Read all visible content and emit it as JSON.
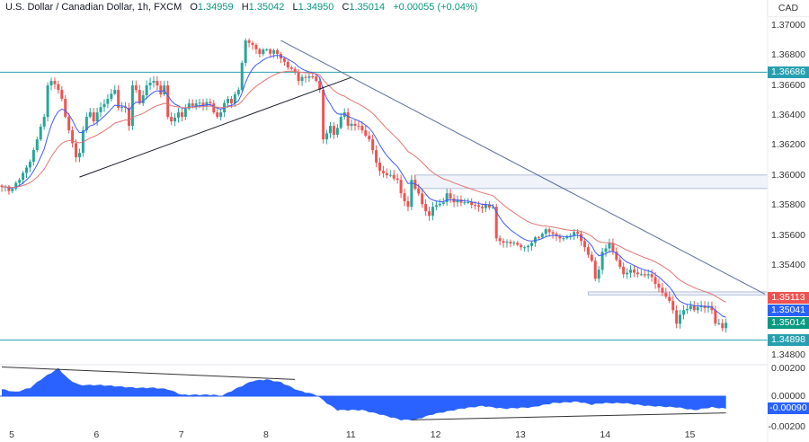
{
  "header": {
    "symbol": "U.S. Dollar / Canadian Dollar, 1h, FXCM",
    "open_label": "O",
    "open": "1.34959",
    "high_label": "H",
    "high": "1.35042",
    "low_label": "L",
    "low": "1.34950",
    "close_label": "C",
    "close": "1.35014",
    "change": "+0.00055 (+0.04%)"
  },
  "currency": "CAD",
  "colors": {
    "up": "#26a69a",
    "down": "#ef5350",
    "fast_ma": "#3d5afe",
    "slow_ma": "#e57373",
    "level": "#26a0b0",
    "trendline_down": "#5b6c9b",
    "oscillator": "#2962ff"
  },
  "price_axis": [
    "1.37000",
    "1.36800",
    "1.36600",
    "1.36400",
    "1.36200",
    "1.36000",
    "1.35800",
    "1.35600",
    "1.35400",
    "1.34800"
  ],
  "osc_axis": [
    "0.00200",
    "0.00000"
  ],
  "osc_axis_partial": "-0.00200",
  "price_tags": [
    {
      "value": "1.36686",
      "color": "#26a0b0"
    },
    {
      "value": "1.35113",
      "color": "#ef5350"
    },
    {
      "value": "1.35041",
      "color": "#2962ff"
    },
    {
      "value": "1.35014",
      "color": "#089981"
    },
    {
      "value": "1.34898",
      "color": "#26a0b0"
    }
  ],
  "osc_tag": {
    "value": "-0.00090",
    "color": "#2962ff"
  },
  "x_axis": [
    {
      "label": "5",
      "hour": 0
    },
    {
      "label": "6",
      "hour": 24
    },
    {
      "label": "7",
      "hour": 48
    },
    {
      "label": "8",
      "hour": 72
    },
    {
      "label": "11",
      "hour": 96
    },
    {
      "label": "12",
      "hour": 120
    },
    {
      "label": "13",
      "hour": 144
    },
    {
      "label": "14",
      "hour": 168
    },
    {
      "label": "15",
      "hour": 192
    }
  ],
  "chart_data": {
    "type": "candlestick",
    "interval": "1h",
    "price_range": [
      1.3475,
      1.3705
    ],
    "closes": [
      [
        0,
        1.3592
      ],
      [
        3,
        1.35908
      ],
      [
        5,
        1.35968
      ],
      [
        8,
        1.36088
      ],
      [
        10,
        1.36238
      ],
      [
        12,
        1.36388
      ],
      [
        13,
        1.36598
      ],
      [
        14,
        1.36628
      ],
      [
        16,
        1.36568
      ],
      [
        17,
        1.36508
      ],
      [
        18,
        1.36388
      ],
      [
        19,
        1.36298
      ],
      [
        21,
        1.36118
      ],
      [
        22,
        1.36148
      ],
      [
        23,
        1.36298
      ],
      [
        24,
        1.36388
      ],
      [
        25,
        1.36418
      ],
      [
        26,
        1.36358
      ],
      [
        27,
        1.36418
      ],
      [
        30,
        1.36508
      ],
      [
        32,
        1.36568
      ],
      [
        33,
        1.36448
      ],
      [
        35,
        1.36448
      ],
      [
        36,
        1.36328
      ],
      [
        37,
        1.36598
      ],
      [
        38,
        1.36568
      ],
      [
        39,
        1.36478
      ],
      [
        41,
        1.36598
      ],
      [
        43,
        1.36628
      ],
      [
        45,
        1.36538
      ],
      [
        46,
        1.36598
      ],
      [
        47,
        1.36388
      ],
      [
        48,
        1.36358
      ],
      [
        50,
        1.36418
      ],
      [
        51,
        1.36388
      ],
      [
        53,
        1.36478
      ],
      [
        55,
        1.36478
      ],
      [
        59,
        1.36478
      ],
      [
        60,
        1.36418
      ],
      [
        61,
        1.36388
      ],
      [
        64,
        1.36508
      ],
      [
        65,
        1.36478
      ],
      [
        67,
        1.36568
      ],
      [
        68,
        1.36748
      ],
      [
        69,
        1.36898
      ],
      [
        71,
        1.36868
      ],
      [
        73,
        1.36808
      ],
      [
        75,
        1.36838
      ],
      [
        78,
        1.36808
      ],
      [
        79,
        1.36778
      ],
      [
        81,
        1.36718
      ],
      [
        83,
        1.36688
      ],
      [
        84,
        1.36628
      ],
      [
        87,
        1.36658
      ],
      [
        89,
        1.36628
      ],
      [
        90,
        1.36568
      ],
      [
        91,
        1.36238
      ],
      [
        93,
        1.36328
      ],
      [
        94,
        1.36268
      ],
      [
        96,
        1.36388
      ],
      [
        97,
        1.36418
      ],
      [
        98,
        1.36328
      ],
      [
        101,
        1.36328
      ],
      [
        102,
        1.36298
      ],
      [
        104,
        1.36238
      ],
      [
        107,
        1.36028
      ],
      [
        109,
        1.35998
      ],
      [
        112,
        1.35968
      ],
      [
        113,
        1.35878
      ],
      [
        115,
        1.35788
      ],
      [
        116,
        1.35968
      ],
      [
        117,
        1.35908
      ],
      [
        120,
        1.35758
      ],
      [
        121,
        1.35728
      ],
      [
        122,
        1.35788
      ],
      [
        125,
        1.35818
      ],
      [
        126,
        1.35878
      ],
      [
        128,
        1.35818
      ],
      [
        131,
        1.35818
      ],
      [
        135,
        1.35788
      ],
      [
        139,
        1.35788
      ],
      [
        140,
        1.35578
      ],
      [
        142,
        1.35548
      ],
      [
        145,
        1.35548
      ],
      [
        148,
        1.35518
      ],
      [
        150,
        1.35548
      ],
      [
        153,
        1.35608
      ],
      [
        154,
        1.35638
      ],
      [
        156,
        1.35608
      ],
      [
        159,
        1.35578
      ],
      [
        162,
        1.3562
      ],
      [
        163,
        1.35608
      ],
      [
        165,
        1.35518
      ],
      [
        167,
        1.35428
      ],
      [
        168,
        1.35308
      ],
      [
        169,
        1.35368
      ],
      [
        170,
        1.35488
      ],
      [
        172,
        1.35548
      ],
      [
        173,
        1.35488
      ],
      [
        176,
        1.35338
      ],
      [
        178,
        1.35368
      ],
      [
        181,
        1.35338
      ],
      [
        183,
        1.35338
      ],
      [
        186,
        1.35248
      ],
      [
        188,
        1.35188
      ],
      [
        190,
        1.35098
      ],
      [
        191,
        1.35008
      ],
      [
        192,
        1.35068
      ],
      [
        193,
        1.35098
      ],
      [
        195,
        1.35128
      ],
      [
        196,
        1.35098
      ],
      [
        198,
        1.35128
      ],
      [
        201,
        1.35098
      ],
      [
        202,
        1.35008
      ],
      [
        204,
        1.34978
      ],
      [
        205,
        1.35014
      ]
    ],
    "horizontal_levels": [
      1.36686,
      1.34898
    ],
    "zones": [
      {
        "from_hour": 117,
        "top": 1.36,
        "bottom": 1.3591
      },
      {
        "from_hour": 166,
        "top": 1.3522,
        "bottom": 1.352
      }
    ],
    "trendlines": [
      {
        "from": [
          22,
          1.35986
        ],
        "to": [
          99,
          1.36652
        ],
        "color": "#131722"
      },
      {
        "from": [
          79,
          1.36898
        ],
        "to": [
          216,
          1.35206
        ],
        "color": "#5b6c9b"
      }
    ],
    "oscillator": {
      "range": [
        -0.0021,
        0.0025
      ],
      "values": [
        [
          0,
          0.0005
        ],
        [
          4,
          0.0003
        ],
        [
          8,
          0.0006
        ],
        [
          11,
          0.0012
        ],
        [
          16,
          0.002
        ],
        [
          19,
          0.0012
        ],
        [
          22,
          0.0008
        ],
        [
          28,
          0.0008
        ],
        [
          33,
          0.0007
        ],
        [
          38,
          0.0006
        ],
        [
          43,
          0.0006
        ],
        [
          47,
          0.0005
        ],
        [
          51,
          0.0001
        ],
        [
          55,
          0.0001
        ],
        [
          60,
          0.0001
        ],
        [
          62,
          0.0
        ],
        [
          66,
          0.0005
        ],
        [
          71,
          0.0011
        ],
        [
          75,
          0.0012
        ],
        [
          79,
          0.001
        ],
        [
          84,
          0.0004
        ],
        [
          89,
          0.0001
        ],
        [
          92,
          -0.0005
        ],
        [
          95,
          -0.001
        ],
        [
          102,
          -0.001
        ],
        [
          107,
          -0.0013
        ],
        [
          113,
          -0.0017
        ],
        [
          117,
          -0.0017
        ],
        [
          122,
          -0.0013
        ],
        [
          130,
          -0.0009
        ],
        [
          136,
          -0.0007
        ],
        [
          142,
          -0.0009
        ],
        [
          150,
          -0.0008
        ],
        [
          156,
          -0.0005
        ],
        [
          163,
          -0.0004
        ],
        [
          167,
          -0.0006
        ],
        [
          170,
          -0.0005
        ],
        [
          176,
          -0.0005
        ],
        [
          183,
          -0.0007
        ],
        [
          191,
          -0.0008
        ],
        [
          196,
          -0.001
        ],
        [
          201,
          -0.0008
        ],
        [
          205,
          -0.0009
        ]
      ],
      "trendlines": [
        {
          "from": [
            0,
            0.0021
          ],
          "to": [
            83,
            0.0012
          ]
        },
        {
          "from": [
            116,
            -0.0017
          ],
          "to": [
            205,
            -0.0012
          ]
        }
      ]
    }
  }
}
